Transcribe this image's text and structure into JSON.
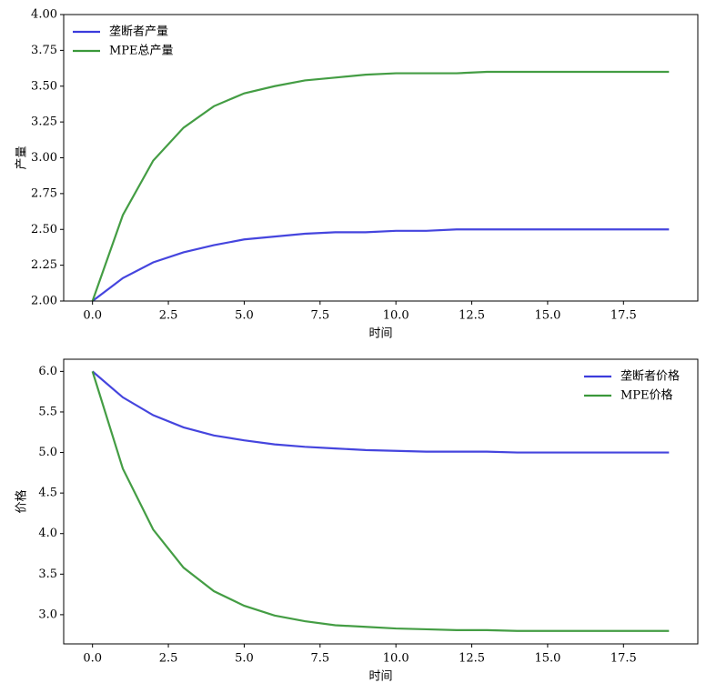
{
  "chart_data": [
    {
      "type": "line",
      "y_label": "产量",
      "x_label": "时间",
      "legend": "upper left",
      "x": [
        0,
        1,
        2,
        3,
        4,
        5,
        6,
        7,
        8,
        9,
        10,
        11,
        12,
        13,
        14,
        15,
        16,
        17,
        18,
        19
      ],
      "series": [
        {
          "name": "垄断者产量",
          "color": "#3b3bdc",
          "values": [
            2.0,
            2.16,
            2.27,
            2.34,
            2.39,
            2.43,
            2.45,
            2.47,
            2.48,
            2.48,
            2.49,
            2.49,
            2.5,
            2.5,
            2.5,
            2.5,
            2.5,
            2.5,
            2.5,
            2.5
          ]
        },
        {
          "name": "MPE总产量",
          "color": "#3a983a",
          "values": [
            2.0,
            2.6,
            2.98,
            3.21,
            3.36,
            3.45,
            3.5,
            3.54,
            3.56,
            3.58,
            3.59,
            3.59,
            3.59,
            3.6,
            3.6,
            3.6,
            3.6,
            3.6,
            3.6,
            3.6
          ]
        }
      ],
      "xlim": [
        -0.95,
        19.95
      ],
      "xticks": [
        {
          "value": 0,
          "label": "0.0"
        },
        2.5,
        {
          "value": 5,
          "label": "5.0"
        },
        7.5,
        {
          "value": 10,
          "label": "10.0"
        },
        12.5,
        {
          "value": 15,
          "label": "15.0"
        },
        17.5
      ],
      "ylim": [
        2,
        4
      ],
      "yticks": [
        {
          "value": 2,
          "label": "2.00"
        },
        2.25,
        {
          "value": 2.5,
          "label": "2.50"
        },
        2.75,
        {
          "value": 3,
          "label": "3.00"
        },
        3.25,
        {
          "value": 3.5,
          "label": "3.50"
        },
        3.75,
        {
          "value": 4,
          "label": "4.00"
        }
      ]
    },
    {
      "type": "line",
      "y_label": "价格",
      "x_label": "时间",
      "legend": "upper right",
      "x": [
        0,
        1,
        2,
        3,
        4,
        5,
        6,
        7,
        8,
        9,
        10,
        11,
        12,
        13,
        14,
        15,
        16,
        17,
        18,
        19
      ],
      "series": [
        {
          "name": "垄断者价格",
          "color": "#3b3bdc",
          "values": [
            6.0,
            5.68,
            5.46,
            5.31,
            5.21,
            5.15,
            5.1,
            5.07,
            5.05,
            5.03,
            5.02,
            5.01,
            5.01,
            5.01,
            5.0,
            5.0,
            5.0,
            5.0,
            5.0,
            5.0
          ]
        },
        {
          "name": "MPE价格",
          "color": "#3a983a",
          "values": [
            6.0,
            4.8,
            4.05,
            3.58,
            3.29,
            3.11,
            2.99,
            2.92,
            2.87,
            2.85,
            2.83,
            2.82,
            2.81,
            2.81,
            2.8,
            2.8,
            2.8,
            2.8,
            2.8,
            2.8
          ]
        }
      ],
      "xlim": [
        -0.95,
        19.95
      ],
      "xticks": [
        {
          "value": 0,
          "label": "0.0"
        },
        2.5,
        {
          "value": 5,
          "label": "5.0"
        },
        7.5,
        {
          "value": 10,
          "label": "10.0"
        },
        12.5,
        {
          "value": 15,
          "label": "15.0"
        },
        17.5
      ],
      "ylim": [
        2.64,
        6.15
      ],
      "yticks": [
        {
          "value": 3,
          "label": "3.0"
        },
        3.5,
        {
          "value": 4,
          "label": "4.0"
        },
        4.5,
        {
          "value": 5,
          "label": "5.0"
        },
        5.5,
        {
          "value": 6,
          "label": "6.0"
        }
      ]
    }
  ]
}
